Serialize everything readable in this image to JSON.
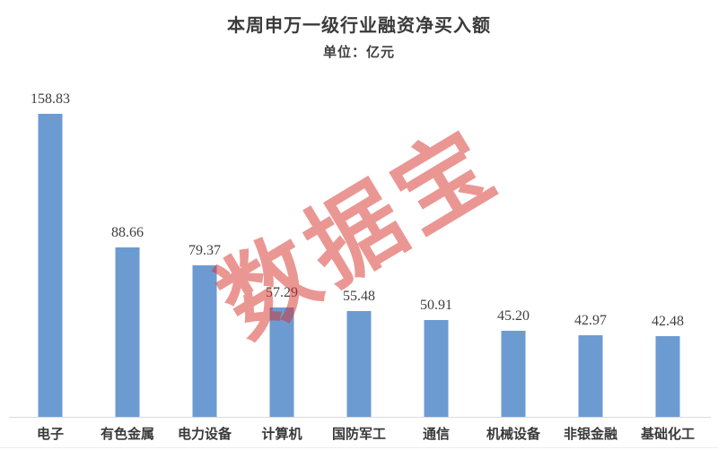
{
  "chart_data": {
    "type": "bar",
    "orientation": "vertical",
    "title": "本周申万一级行业融资净买入额",
    "subtitle": "单位：亿元",
    "categories": [
      "电子",
      "有色金属",
      "电力设备",
      "计算机",
      "国防军工",
      "通信",
      "机械设备",
      "非银金融",
      "基础化工"
    ],
    "values": [
      158.83,
      88.66,
      79.37,
      57.29,
      55.48,
      50.91,
      45.2,
      42.97,
      42.48
    ],
    "value_labels": [
      "158.83",
      "88.66",
      "79.37",
      "57.29",
      "55.48",
      "50.91",
      "45.20",
      "42.97",
      "42.48"
    ],
    "bar_color": "#6C9BD2",
    "value_label_color": "#3F3F3F",
    "axis_line_color": "#D9D9D9",
    "ylim": [
      0,
      170
    ],
    "grid": false,
    "legend": "none"
  },
  "watermark": {
    "text": "数据宝",
    "color": "rgba(214, 48, 42, 0.5)"
  }
}
